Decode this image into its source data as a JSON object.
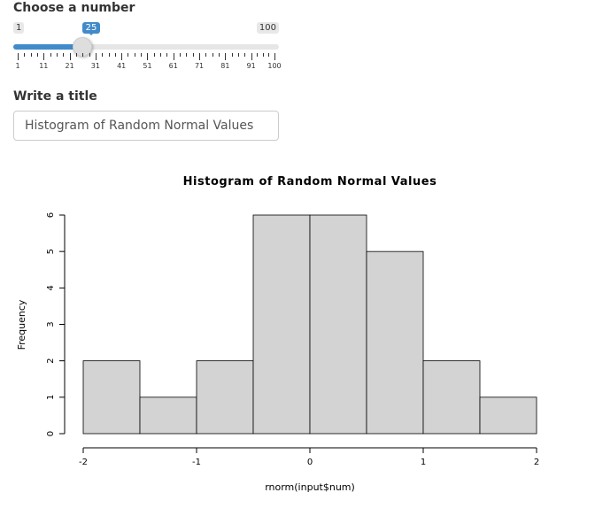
{
  "number_control": {
    "label": "Choose a number",
    "min_label": "1",
    "max_label": "100",
    "value_label": "25",
    "value": 25,
    "min": 1,
    "max": 100,
    "grid_labels": [
      "1",
      "11",
      "21",
      "31",
      "41",
      "51",
      "61",
      "71",
      "81",
      "91",
      "100"
    ]
  },
  "title_control": {
    "label": "Write a title",
    "value": "Histogram of Random Normal Values"
  },
  "colors": {
    "slider_accent": "#428bca",
    "bar_fill": "#d3d3d3",
    "bar_stroke": "#000000"
  },
  "chart_data": {
    "type": "bar",
    "title": "Histogram of Random Normal Values",
    "xlabel": "rnorm(input$num)",
    "ylabel": "Frequency",
    "bins": [
      {
        "x0": -2.0,
        "x1": -1.5,
        "count": 2
      },
      {
        "x0": -1.5,
        "x1": -1.0,
        "count": 1
      },
      {
        "x0": -1.0,
        "x1": -0.5,
        "count": 2
      },
      {
        "x0": -0.5,
        "x1": 0.0,
        "count": 6
      },
      {
        "x0": 0.0,
        "x1": 0.5,
        "count": 6
      },
      {
        "x0": 0.5,
        "x1": 1.0,
        "count": 5
      },
      {
        "x0": 1.0,
        "x1": 1.5,
        "count": 2
      },
      {
        "x0": 1.5,
        "x1": 2.0,
        "count": 1
      }
    ],
    "xlim": [
      -2,
      2
    ],
    "ylim": [
      0,
      6
    ],
    "x_ticks": [
      "-2",
      "-1",
      "0",
      "1",
      "2"
    ],
    "y_ticks": [
      "0",
      "1",
      "2",
      "3",
      "4",
      "5",
      "6"
    ],
    "grid": false
  }
}
